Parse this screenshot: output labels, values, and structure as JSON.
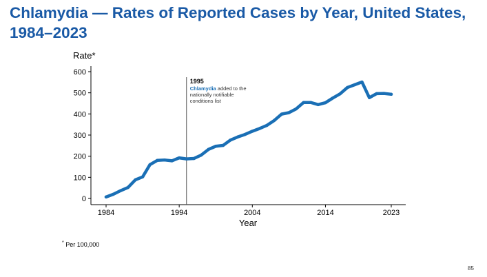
{
  "slide": {
    "title": "Chlamydia — Rates of Reported Cases by Year, United States, 1984–2023",
    "footnote_marker": "*",
    "footnote": " Per 100,000",
    "page_number": "85"
  },
  "annotation": {
    "year_label": "1995",
    "highlight": "Chlamydia",
    "text_line1": " added to the",
    "text_line2": "nationally notifiable",
    "text_line3": "conditions list",
    "year": 1995
  },
  "colors": {
    "line": "#1a6fb5",
    "title": "#1a5aa6",
    "highlight": "#1a6fb5"
  },
  "chart_data": {
    "type": "line",
    "title": "",
    "xlabel": "Year",
    "ylabel": "Rate*",
    "xlim": [
      1984,
      2023
    ],
    "ylim": [
      0,
      600
    ],
    "xticks": [
      1984,
      1994,
      2004,
      2014,
      2023
    ],
    "yticks": [
      0,
      100,
      200,
      300,
      400,
      500,
      600
    ],
    "grid": false,
    "series": [
      {
        "name": "Chlamydia rate",
        "x": [
          1984,
          1985,
          1986,
          1987,
          1988,
          1989,
          1990,
          1991,
          1992,
          1993,
          1994,
          1995,
          1996,
          1997,
          1998,
          1999,
          2000,
          2001,
          2002,
          2003,
          2004,
          2005,
          2006,
          2007,
          2008,
          2009,
          2010,
          2011,
          2012,
          2013,
          2014,
          2015,
          2016,
          2017,
          2018,
          2019,
          2020,
          2021,
          2022,
          2023
        ],
        "values": [
          7,
          20,
          37,
          52,
          88,
          102,
          160,
          180,
          182,
          178,
          192,
          187,
          189,
          205,
          232,
          247,
          251,
          276,
          291,
          303,
          318,
          331,
          346,
          369,
          399,
          406,
          424,
          454,
          454,
          444,
          453,
          475,
          495,
          525,
          538,
          551,
          477,
          496,
          497,
          493
        ]
      }
    ]
  }
}
